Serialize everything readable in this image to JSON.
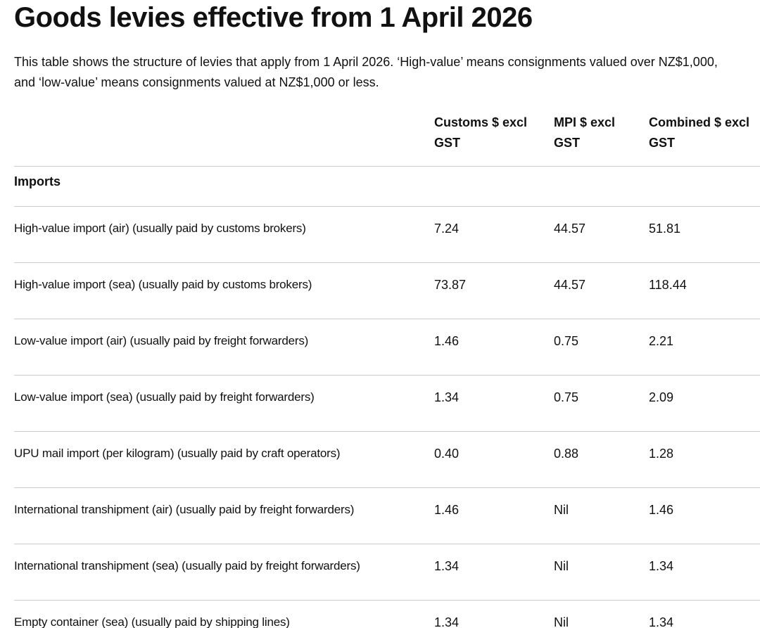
{
  "page": {
    "title": "Goods levies effective from 1 April 2026",
    "intro": "This table shows the structure of levies that apply from 1 April 2026. ‘High-value’ means consignments valued over NZ$1,000, and ‘low-value’ means consignments valued at NZ$1,000 or less."
  },
  "table": {
    "columns": [
      {
        "key": "item",
        "line1": "",
        "line2": ""
      },
      {
        "key": "customs",
        "line1": "Customs $ excl",
        "line2": "GST",
        "full": "Customs $ excl GST"
      },
      {
        "key": "mpi",
        "line1": "MPI $ excl",
        "line2": "GST",
        "full": "MPI $ excl GST"
      },
      {
        "key": "combined",
        "line1": "Combined $ excl",
        "line2": "GST",
        "full": "Combined $ excl GST"
      }
    ],
    "section": "Imports",
    "rows": [
      {
        "label": "High-value import (air) (usually paid by customs brokers)",
        "customs": "7.24",
        "mpi": "44.57",
        "combined": "51.81"
      },
      {
        "label": "High-value import (sea) (usually paid by customs brokers)",
        "customs": "73.87",
        "mpi": "44.57",
        "combined": "118.44"
      },
      {
        "label": "Low-value import (air) (usually paid by freight forwarders)",
        "customs": "1.46",
        "mpi": "0.75",
        "combined": "2.21"
      },
      {
        "label": "Low-value import (sea) (usually paid by freight forwarders)",
        "customs": "1.34",
        "mpi": "0.75",
        "combined": "2.09"
      },
      {
        "label": "UPU mail import (per kilogram) (usually paid by craft operators)",
        "customs": "0.40",
        "mpi": "0.88",
        "combined": "1.28"
      },
      {
        "label": "International transhipment (air) (usually paid by freight forwarders)",
        "customs": "1.46",
        "mpi": "Nil",
        "combined": "1.46"
      },
      {
        "label": "International transhipment (sea) (usually paid by freight forwarders)",
        "customs": "1.34",
        "mpi": "Nil",
        "combined": "1.34"
      },
      {
        "label": "Empty container (sea) (usually paid by shipping lines)",
        "customs": "1.34",
        "mpi": "Nil",
        "combined": "1.34"
      }
    ],
    "colors": {
      "text": "#111111",
      "divider": "#cccccc",
      "background": "#ffffff"
    }
  }
}
